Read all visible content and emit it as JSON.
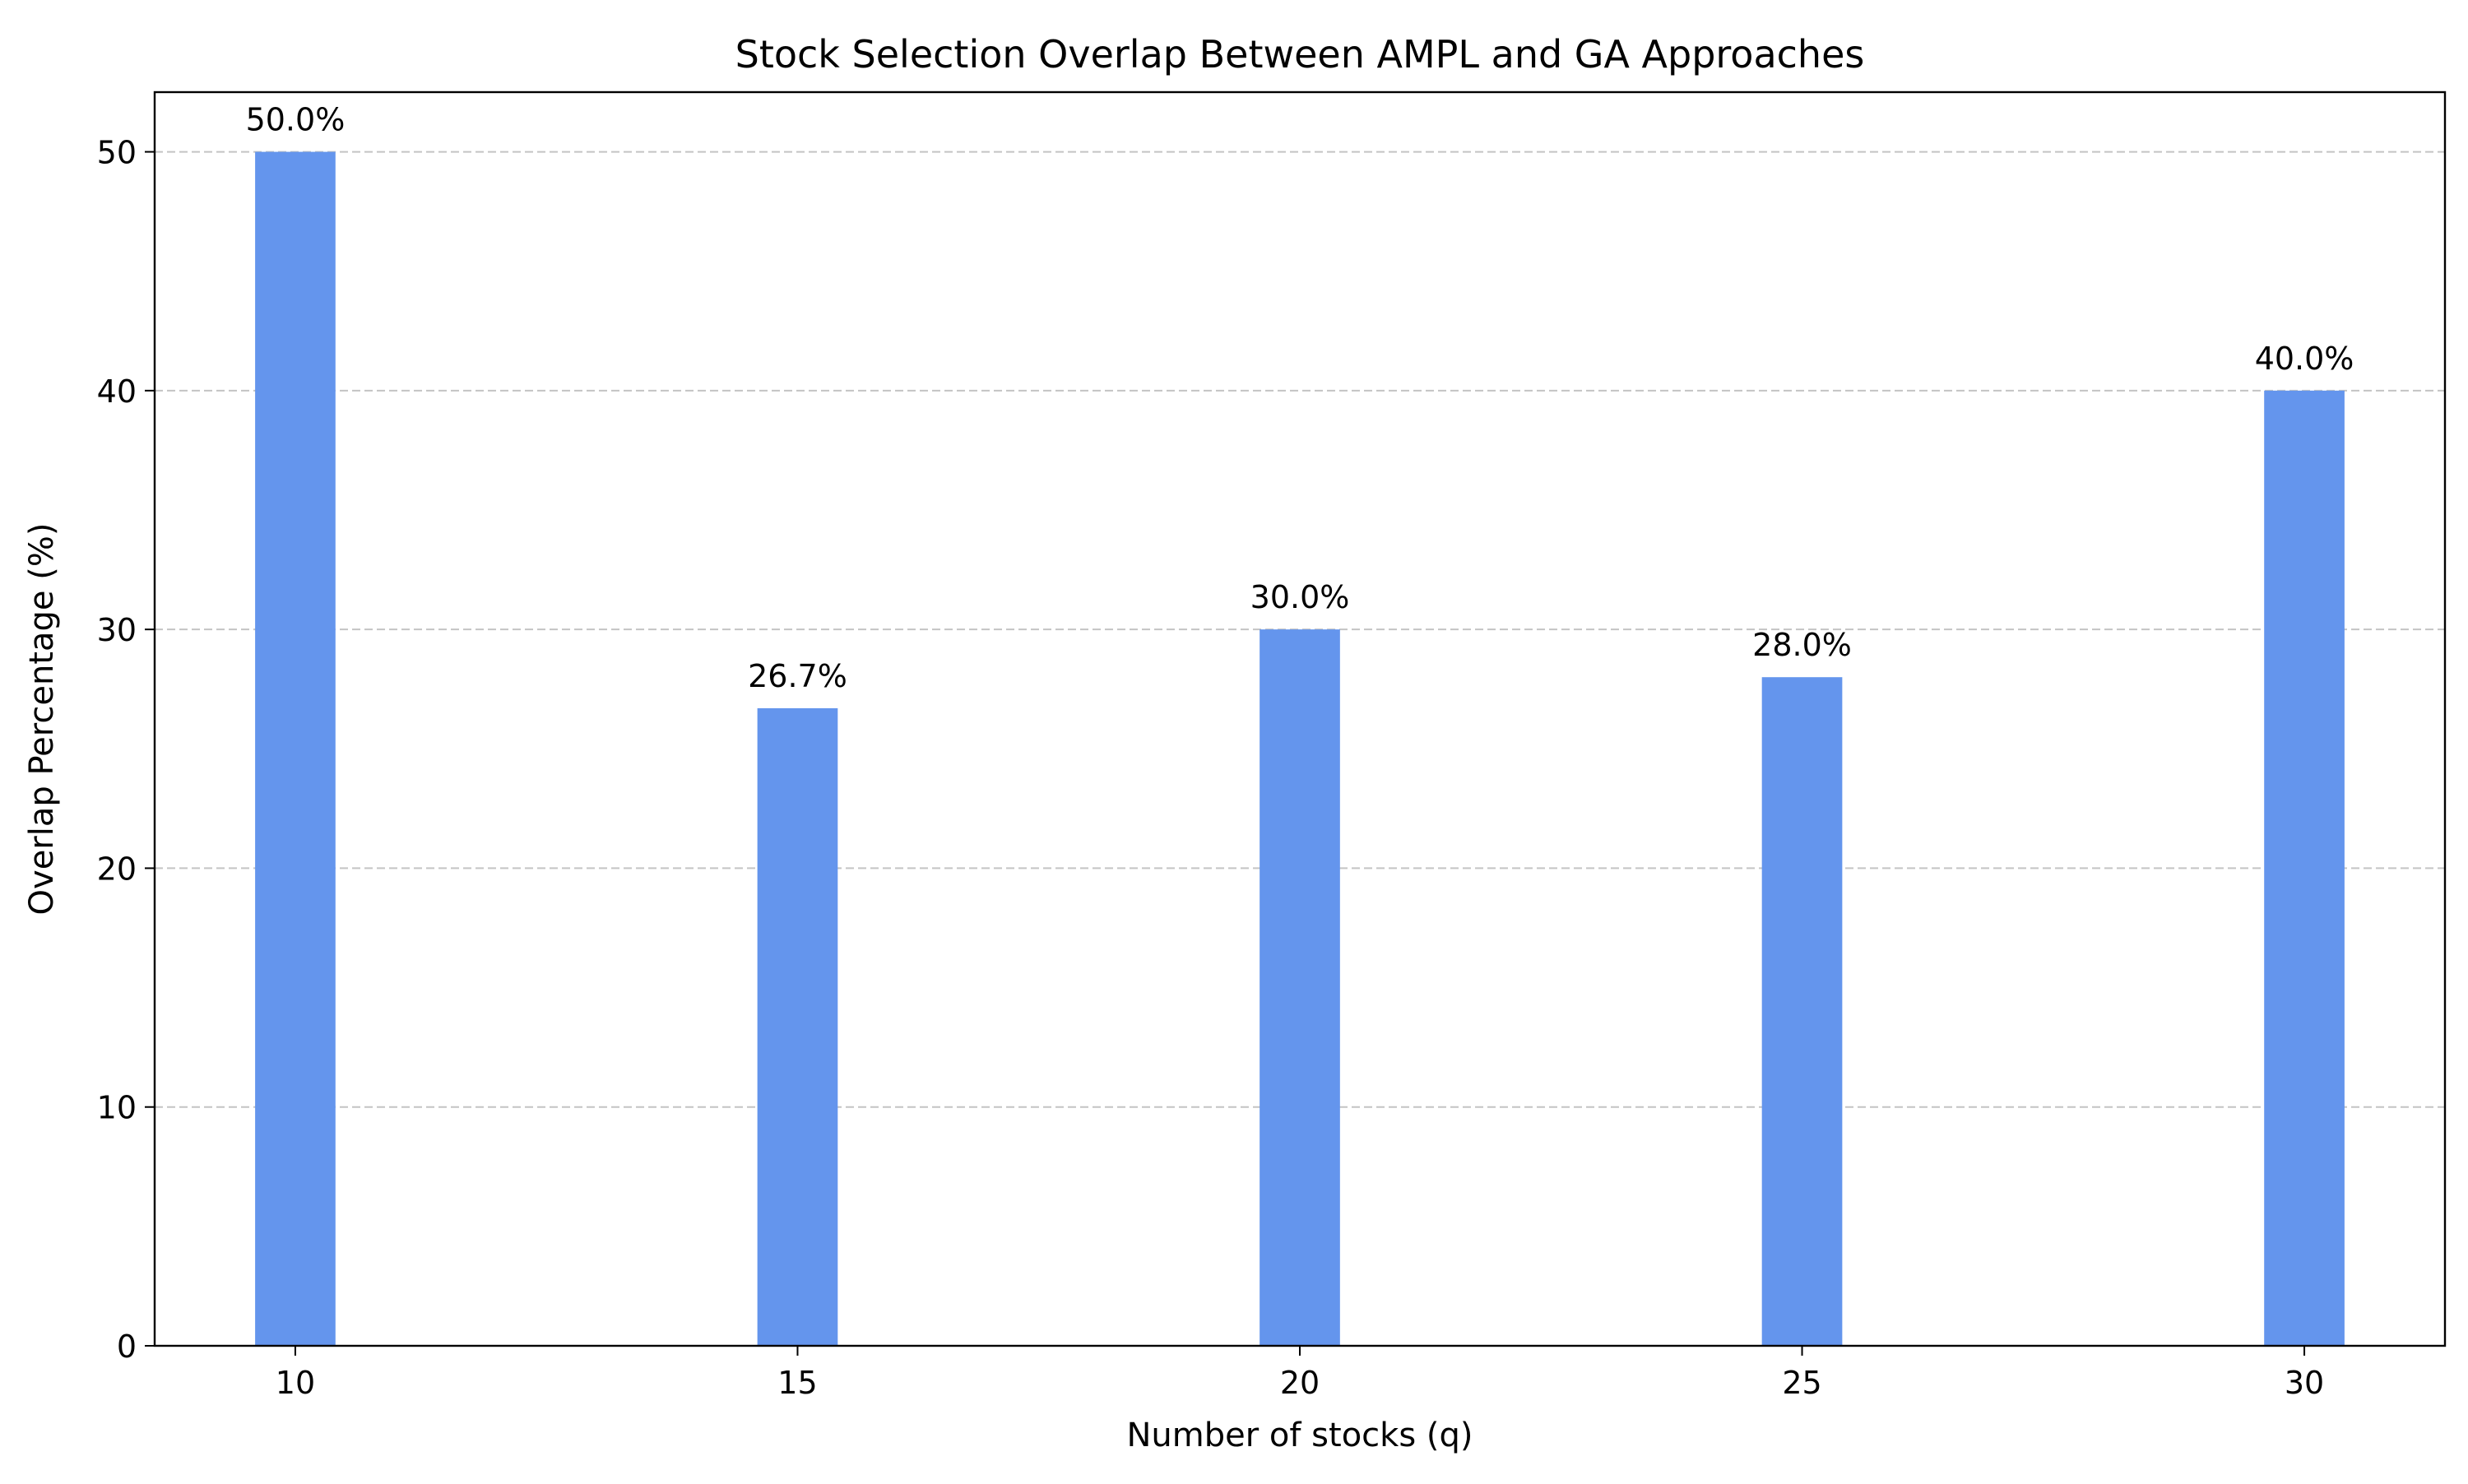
{
  "chart_data": {
    "type": "bar",
    "title": "Stock Selection Overlap Between AMPL and GA Approaches",
    "xlabel": "Number of stocks (q)",
    "ylabel": "Overlap Percentage (%)",
    "x": [
      10,
      15,
      20,
      25,
      30
    ],
    "categories": [
      "10",
      "15",
      "20",
      "25",
      "30"
    ],
    "values": [
      50.0,
      26.7,
      30.0,
      28.0,
      40.0
    ],
    "data_labels": [
      "50.0%",
      "26.7%",
      "30.0%",
      "28.0%",
      "40.0%"
    ],
    "ylim": [
      0,
      52.5
    ],
    "xlim": [
      8.6,
      31.4
    ],
    "yticks": [
      0,
      10,
      20,
      30,
      40,
      50
    ],
    "ytick_labels": [
      "0",
      "10",
      "20",
      "30",
      "40",
      "50"
    ],
    "grid": "y-dashed",
    "bar_color": "#6495ED",
    "grid_color": "#c4c4c4"
  }
}
